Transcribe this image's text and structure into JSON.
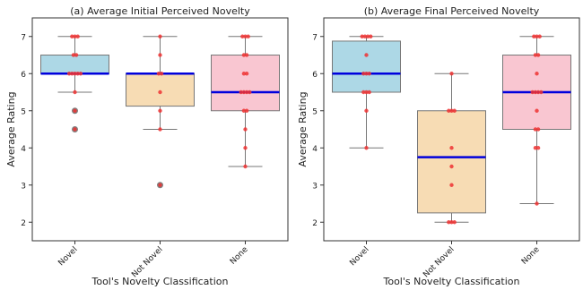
{
  "chart_data": [
    {
      "type": "box",
      "title": "(a) Average Initial Perceived Novelty",
      "xlabel": "Tool's Novelty Classification",
      "ylabel": "Average Rating",
      "categories": [
        "Novel",
        "Not Novel",
        "None"
      ],
      "ylim": [
        1.5,
        7.5
      ],
      "yticks": [
        2,
        3,
        4,
        5,
        6,
        7
      ],
      "box_colors": [
        "#add8e6",
        "#f7dcb4",
        "#f9c6d1"
      ],
      "median_color": "#0000dd",
      "point_color": "#ee3333",
      "boxes": [
        {
          "q1": 6.0,
          "median": 6.0,
          "q3": 6.5,
          "whisker_low": 5.5,
          "whisker_high": 7.0,
          "outliers": [
            5.0,
            4.5
          ]
        },
        {
          "q1": 5.125,
          "median": 6.0,
          "q3": 6.0,
          "whisker_low": 4.5,
          "whisker_high": 7.0,
          "outliers": [
            3.0
          ]
        },
        {
          "q1": 5.0,
          "median": 5.5,
          "q3": 6.5,
          "whisker_low": 3.5,
          "whisker_high": 7.0,
          "outliers": []
        }
      ],
      "points": [
        [
          7.0,
          7.0,
          7.0,
          6.5,
          6.5,
          6.0,
          6.0,
          6.0,
          6.0,
          6.0,
          5.5,
          5.0,
          4.5
        ],
        [
          7.0,
          6.5,
          6.0,
          6.0,
          5.5,
          5.0,
          4.5,
          3.0
        ],
        [
          7.0,
          7.0,
          7.0,
          6.5,
          6.5,
          6.0,
          6.0,
          5.5,
          5.5,
          5.5,
          5.5,
          5.0,
          5.0,
          4.5,
          4.0,
          3.5
        ]
      ]
    },
    {
      "type": "box",
      "title": "(b) Average Final Perceived Novelty",
      "xlabel": "Tool's Novelty Classification",
      "ylabel": "Average Rating",
      "categories": [
        "Novel",
        "Not Novel",
        "None"
      ],
      "ylim": [
        1.5,
        7.5
      ],
      "yticks": [
        2,
        3,
        4,
        5,
        6,
        7
      ],
      "box_colors": [
        "#add8e6",
        "#f7dcb4",
        "#f9c6d1"
      ],
      "median_color": "#0000dd",
      "point_color": "#ee3333",
      "boxes": [
        {
          "q1": 5.5,
          "median": 6.0,
          "q3": 6.875,
          "whisker_low": 4.0,
          "whisker_high": 7.0,
          "outliers": []
        },
        {
          "q1": 2.25,
          "median": 3.75,
          "q3": 5.0,
          "whisker_low": 2.0,
          "whisker_high": 6.0,
          "outliers": []
        },
        {
          "q1": 4.5,
          "median": 5.5,
          "q3": 6.5,
          "whisker_low": 2.5,
          "whisker_high": 7.0,
          "outliers": []
        }
      ],
      "points": [
        [
          7.0,
          7.0,
          7.0,
          7.0,
          6.5,
          6.0,
          6.0,
          6.0,
          5.5,
          5.5,
          5.5,
          5.0,
          4.0
        ],
        [
          6.0,
          5.0,
          5.0,
          5.0,
          4.0,
          3.5,
          3.0,
          2.0,
          2.0,
          2.0
        ],
        [
          7.0,
          7.0,
          7.0,
          6.5,
          6.5,
          6.0,
          5.5,
          5.5,
          5.5,
          5.5,
          5.0,
          4.5,
          4.5,
          4.0,
          4.0,
          2.5
        ]
      ]
    }
  ]
}
